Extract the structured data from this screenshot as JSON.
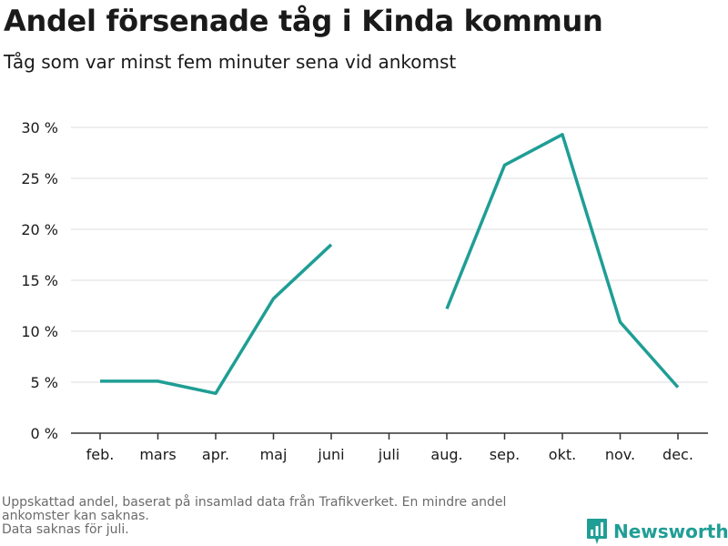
{
  "title": "Andel försenade tåg i Kinda kommun",
  "subtitle": "Tåg som var minst fem minuter sena vid ankomst",
  "footnote": {
    "line1": "Uppskattad andel, baserat på insamlad data från Trafikverket. En mindre andel",
    "line2": "ankomster kan saknas.",
    "line3": "Data saknas för juli."
  },
  "brand": {
    "name": "Newsworthy",
    "icon": "newsworthy-logo-icon",
    "color": "#1f9e95"
  },
  "chart_data": {
    "type": "line",
    "categories": [
      "feb.",
      "mars",
      "apr.",
      "maj",
      "juni",
      "juli",
      "aug.",
      "sep.",
      "okt.",
      "nov.",
      "dec."
    ],
    "series": [
      {
        "values": [
          5.1,
          5.1,
          3.9,
          13.2,
          18.5,
          null,
          12.2,
          26.3,
          29.3,
          10.9,
          4.5
        ]
      }
    ],
    "ylim": [
      0,
      30
    ],
    "yticks": [
      0,
      5,
      10,
      15,
      20,
      25,
      30
    ],
    "ytick_labels": [
      "0 %",
      "5 %",
      "10 %",
      "15 %",
      "20 %",
      "25 %",
      "30 %"
    ],
    "grid": true,
    "line_color": "#1f9e95",
    "grid_color": "#dddddd",
    "xlabel": "",
    "ylabel": ""
  }
}
